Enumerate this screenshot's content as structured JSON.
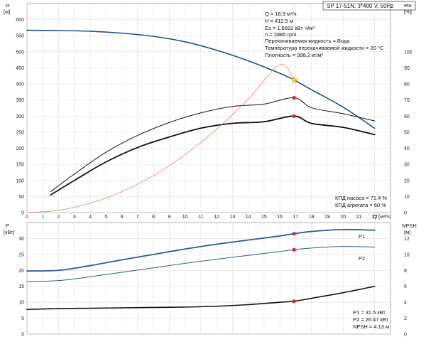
{
  "title": "SP 17-51N, 3*400 V, 50Hz",
  "info_lines": [
    "Q = 16.9 м³/ч",
    "H = 412.5 м",
    "Es = 1.8692 кВт·ч/м³",
    "n = 2885 rpm",
    "Перекачиваемая жидкость = Вода",
    "Температура перекачиваемой жидкости = 20 °C",
    "Плотность = 998.2 кг/м³"
  ],
  "efficiency_notes": [
    "КПД насоса = 71.4 %",
    "КПД агрегата = 60 %"
  ],
  "power_notes": [
    "P1 = 31.5 кВт",
    "P2 = 26.47 кВт",
    "NPSH = 4.13 м"
  ],
  "top_axes": {
    "y_label": [
      "H",
      "[м]"
    ],
    "y2_label": [
      "eta",
      "[%]"
    ],
    "x_label": [
      "Q",
      "[м³/ч]"
    ]
  },
  "bottom_axes": {
    "y_label": [
      "P",
      "[кВт]"
    ],
    "y2_label": [
      "NPSH",
      "[м]"
    ]
  },
  "colors": {
    "head_curve": "#1f4e8c",
    "efficiency_curves": "#111111",
    "system_curve": "#f08070",
    "power_curves": "#2a5a9a",
    "npsh_curve": "#111111",
    "duty_point": "#e02020",
    "duty_marker": "#ffd700",
    "grid": "#d9d9d9"
  },
  "chart_data": [
    {
      "type": "line",
      "title": "",
      "xlabel": "Q [м³/ч]",
      "ylabel": "H [м]",
      "y2label": "eta [%]",
      "xlim": [
        0,
        23
      ],
      "ylim": [
        0,
        650
      ],
      "y2lim": [
        0,
        130
      ],
      "x_ticks": [
        0,
        1,
        2,
        3,
        4,
        5,
        6,
        7,
        8,
        9,
        10,
        11,
        12,
        13,
        14,
        15,
        16,
        17,
        18,
        19,
        20,
        21,
        22
      ],
      "y_ticks": [
        0,
        50,
        100,
        150,
        200,
        250,
        300,
        350,
        400,
        450,
        500,
        550,
        600
      ],
      "y2_ticks": [
        0,
        10,
        20,
        30,
        40,
        50,
        60,
        70,
        80,
        90,
        100
      ],
      "grid": true,
      "series": [
        {
          "name": "",
          "axis": "left",
          "color": "#1f4e8c",
          "width": 1.6,
          "x": [
            0,
            2,
            4,
            6,
            8,
            10,
            12,
            14,
            16,
            16.9,
            18,
            20,
            22
          ],
          "y": [
            567,
            566,
            564,
            558,
            548,
            531,
            505,
            472,
            433,
            412.5,
            382,
            328,
            262
          ]
        },
        {
          "name": "",
          "axis": "right",
          "color": "#111111",
          "width": 1.0,
          "x": [
            1.5,
            3,
            5,
            7,
            9,
            11,
            13,
            15,
            16.9,
            18,
            20,
            22
          ],
          "y": [
            13,
            24,
            37.5,
            48,
            56,
            62,
            66,
            67.5,
            71.4,
            65.2,
            61.5,
            57
          ]
        },
        {
          "name": "",
          "axis": "right",
          "color": "#111111",
          "width": 1.8,
          "x": [
            1.5,
            3,
            5,
            7,
            9,
            11,
            13,
            15,
            16.9,
            18,
            20,
            22
          ],
          "y": [
            11,
            20,
            31.5,
            40.5,
            47,
            52.5,
            55.5,
            56.5,
            60,
            55.5,
            53,
            48.5
          ]
        },
        {
          "name": "",
          "axis": "left",
          "color": "#f08070",
          "width": 0.8,
          "x": [
            0,
            2,
            4,
            6,
            8,
            10,
            12,
            14,
            16,
            16.9
          ],
          "y": [
            0,
            7,
            29,
            65,
            115,
            180,
            259,
            353,
            460,
            412.5
          ]
        }
      ],
      "duty_points": [
        {
          "x": 16.9,
          "y": 412.5,
          "axis": "left",
          "marker": "star"
        },
        {
          "x": 16.9,
          "y": 71.4,
          "axis": "right",
          "marker": "dot"
        },
        {
          "x": 16.9,
          "y": 60,
          "axis": "right",
          "marker": "dot"
        }
      ]
    },
    {
      "type": "line",
      "title": "",
      "xlabel": "Q [м³/ч]",
      "ylabel": "P [кВт]",
      "y2label": "NPSH [м]",
      "xlim": [
        0,
        23
      ],
      "ylim": [
        0,
        35
      ],
      "y2lim": [
        0,
        14
      ],
      "y_ticks": [
        0,
        5,
        10,
        15,
        20,
        25,
        30
      ],
      "y2_ticks": [
        0,
        2,
        4,
        6,
        8,
        10,
        12
      ],
      "grid": true,
      "series": [
        {
          "name": "P1",
          "axis": "left",
          "color": "#2a5a9a",
          "width": 1.8,
          "x": [
            0,
            2,
            4,
            6,
            8,
            10,
            12,
            14,
            16,
            16.9,
            18,
            20,
            22
          ],
          "y": [
            19.8,
            20,
            21.5,
            23.3,
            25,
            26.7,
            28.2,
            29.5,
            30.8,
            31.5,
            32.2,
            32.8,
            32.6
          ]
        },
        {
          "name": "P2",
          "axis": "left",
          "color": "#2a5a9a",
          "width": 1.0,
          "x": [
            0,
            2,
            4,
            6,
            8,
            10,
            12,
            14,
            16,
            16.9,
            18,
            20,
            22
          ],
          "y": [
            16.5,
            16.8,
            18,
            19.4,
            20.8,
            22.2,
            23.5,
            24.7,
            25.9,
            26.47,
            27,
            27.5,
            27.3
          ]
        },
        {
          "name": "",
          "axis": "right",
          "color": "#111111",
          "width": 1.6,
          "x": [
            0,
            2,
            4,
            6,
            8,
            10,
            12,
            14,
            16,
            16.9,
            18,
            20,
            22
          ],
          "y": [
            3.1,
            3.2,
            3.25,
            3.3,
            3.35,
            3.4,
            3.5,
            3.7,
            4.0,
            4.13,
            4.5,
            5.2,
            6.0
          ]
        }
      ],
      "duty_points": [
        {
          "x": 16.9,
          "y": 31.5,
          "axis": "left",
          "marker": "dot"
        },
        {
          "x": 16.9,
          "y": 26.47,
          "axis": "left",
          "marker": "dot"
        },
        {
          "x": 16.9,
          "y": 4.13,
          "axis": "right",
          "marker": "dot"
        }
      ]
    }
  ]
}
